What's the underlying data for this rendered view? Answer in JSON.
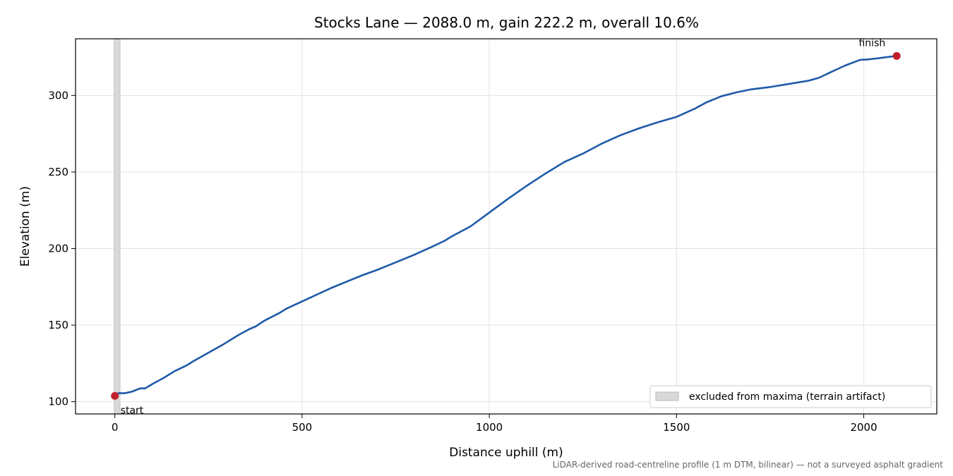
{
  "chart_data": {
    "type": "line",
    "title": "Stocks Lane — 2088.0 m, gain 222.2 m, overall 10.6%",
    "xlabel": "Distance uphill (m)",
    "ylabel": "Elevation (m)",
    "xlim": [
      -105,
      2195
    ],
    "ylim": [
      92,
      337
    ],
    "xticks": [
      0,
      500,
      1000,
      1500,
      2000
    ],
    "yticks": [
      100,
      150,
      200,
      250,
      300
    ],
    "grid": true,
    "line_color": "#1f5aa8",
    "marker_color": "#c0202b",
    "excluded_band": {
      "x": [
        0,
        12
      ],
      "label": "excluded from maxima (terrain artifact)",
      "color": "#d9d9d9"
    },
    "legend_position": "lower-right",
    "series": [
      {
        "x": [
          0,
          10,
          25,
          45,
          60,
          70,
          80,
          100,
          130,
          160,
          190,
          210,
          250,
          290,
          330,
          360,
          375,
          400,
          440,
          460,
          500,
          540,
          580,
          620,
          660,
          700,
          750,
          800,
          850,
          880,
          900,
          950,
          1000,
          1050,
          1100,
          1150,
          1200,
          1250,
          1300,
          1350,
          1400,
          1450,
          1500,
          1550,
          1580,
          1620,
          1660,
          1700,
          1750,
          1800,
          1850,
          1880,
          1910,
          1950,
          1990,
          2010,
          2040,
          2060,
          2088
        ],
        "values": [
          103.8,
          105.6,
          105.5,
          106.5,
          108.0,
          108.8,
          108.6,
          111.5,
          115.5,
          120.0,
          123.5,
          126.5,
          132.0,
          137.5,
          143.5,
          147.5,
          149.0,
          153.0,
          158.0,
          161.0,
          165.5,
          170.0,
          174.5,
          178.5,
          182.5,
          186.0,
          191.0,
          196.0,
          201.5,
          205.0,
          208.0,
          214.5,
          223.5,
          232.5,
          241.0,
          249.0,
          256.5,
          262.0,
          268.5,
          274.0,
          278.5,
          282.5,
          286.0,
          291.5,
          295.5,
          299.5,
          302.0,
          304.0,
          305.5,
          307.5,
          309.5,
          311.5,
          315.0,
          319.5,
          323.2,
          323.5,
          324.3,
          325.0,
          325.8
        ]
      }
    ],
    "annotations": [
      {
        "text": "start",
        "x": 0,
        "y": 103.8
      },
      {
        "text": "finish",
        "x": 2088,
        "y": 325.8
      }
    ],
    "footnote": "LiDAR-derived road-centreline profile (1 m DTM, bilinear) — not a surveyed asphalt gradient"
  }
}
